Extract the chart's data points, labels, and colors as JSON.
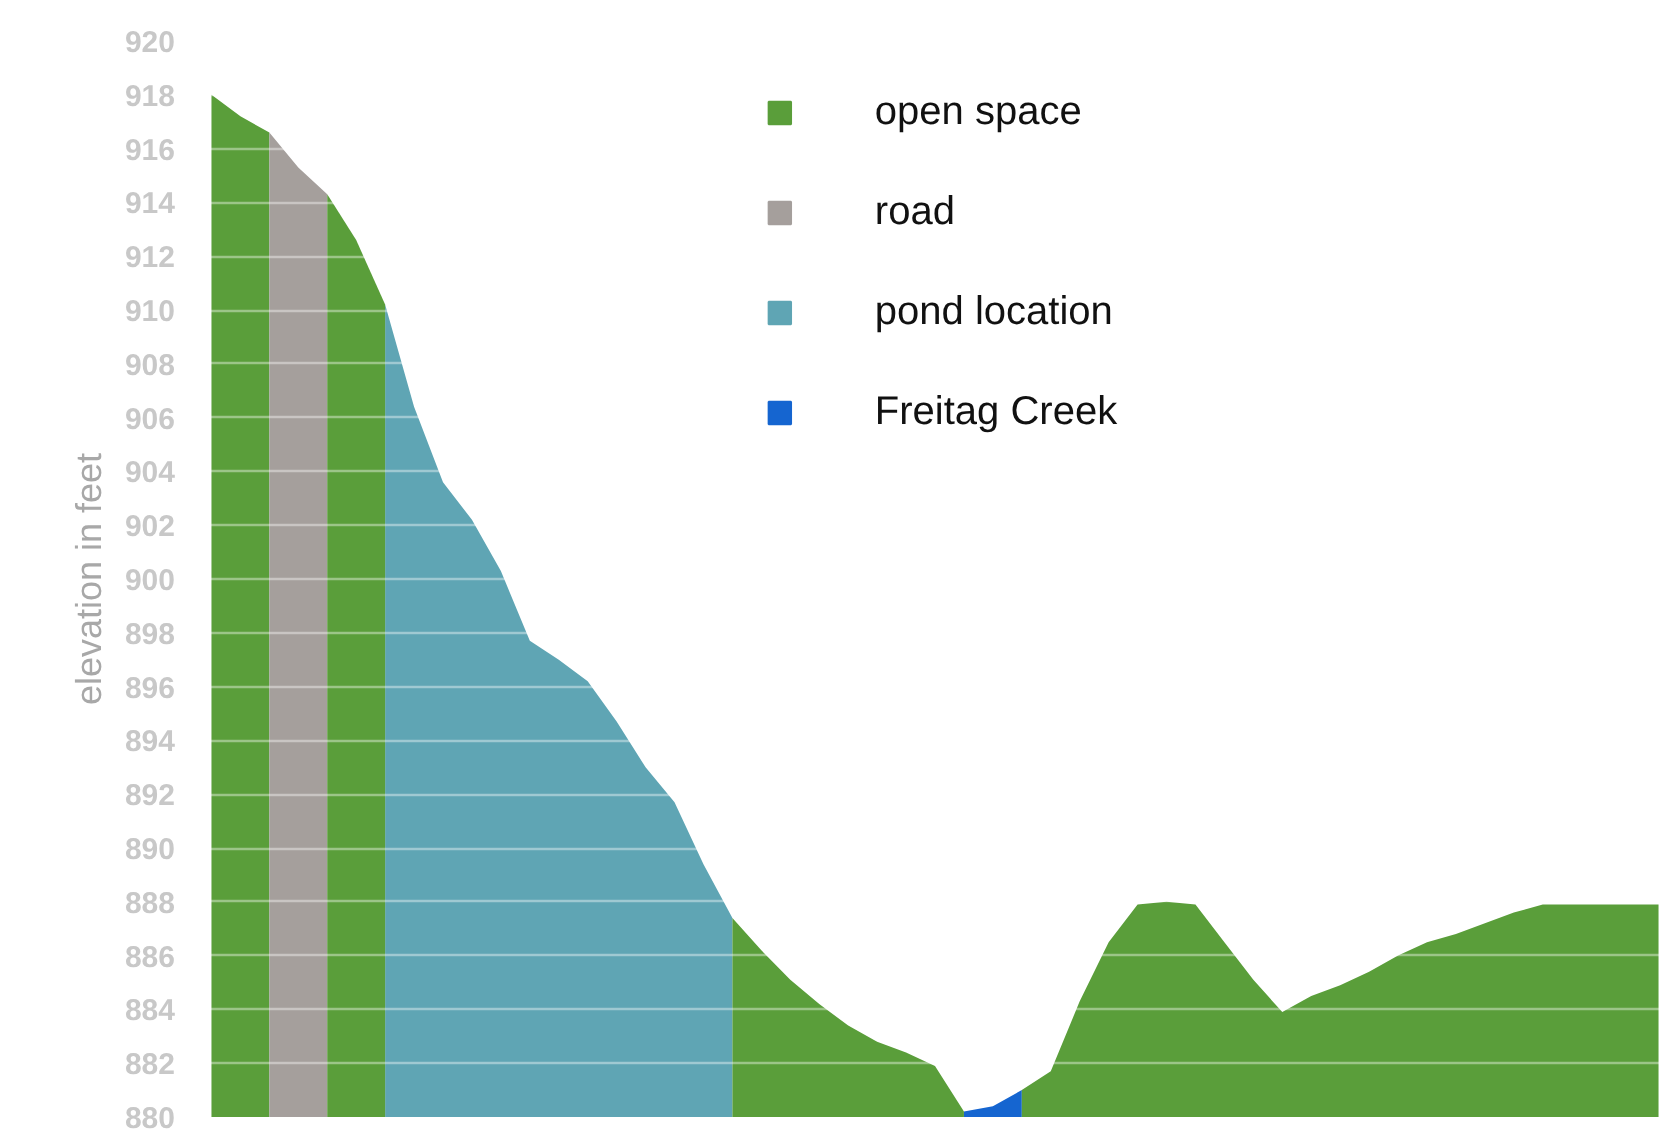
{
  "chart_data": {
    "type": "area",
    "ylabel": "elevation in feet",
    "categories": [
      null,
      null,
      null,
      null,
      null,
      null,
      null,
      null,
      null,
      null,
      null,
      null,
      null,
      null,
      null,
      null,
      null,
      null,
      null,
      null,
      null,
      null,
      null,
      null,
      null,
      null,
      null,
      null,
      null,
      null,
      null,
      null,
      null,
      null,
      null,
      null,
      null,
      null,
      null,
      null,
      null,
      null,
      null,
      null,
      null,
      null,
      null,
      null,
      null,
      null,
      null
    ],
    "series": [
      {
        "name": "open space",
        "color": "#5a9e3a",
        "values": [
          918.0,
          917.2,
          916.6,
          null,
          null,
          null,
          null,
          null,
          null,
          null,
          null,
          null,
          null,
          null,
          null,
          null,
          null,
          null,
          null,
          null,
          null,
          null,
          null,
          null,
          null,
          null,
          null,
          null,
          null,
          null,
          null,
          null,
          null,
          null,
          null,
          null,
          null,
          null,
          null,
          null,
          null,
          null,
          null,
          null,
          null,
          null,
          null,
          null,
          null,
          null,
          null
        ]
      },
      {
        "name": "road",
        "color": "#a59f9c",
        "values": [
          null,
          null,
          916.6,
          915.3,
          914.3,
          null,
          null,
          null,
          null,
          null,
          null,
          null,
          null,
          null,
          null,
          null,
          null,
          null,
          null,
          null,
          null,
          null,
          null,
          null,
          null,
          null,
          null,
          null,
          null,
          null,
          null,
          null,
          null,
          null,
          null,
          null,
          null,
          null,
          null,
          null,
          null,
          null,
          null,
          null,
          null,
          null,
          null,
          null,
          null,
          null,
          null
        ]
      },
      {
        "name": "pond location",
        "color": "#5fa5b4",
        "values": [
          null,
          null,
          null,
          null,
          null,
          null,
          910.2,
          906.4,
          903.6,
          902.2,
          900.3,
          897.7,
          897.0,
          896.2,
          894.7,
          893.0,
          891.7,
          889.4,
          887.4,
          null,
          null,
          null,
          null,
          null,
          null,
          null,
          null,
          null,
          null,
          null,
          null,
          null,
          null,
          null,
          null,
          null,
          null,
          null,
          null,
          null,
          null,
          null,
          null,
          null,
          null,
          null,
          null,
          null,
          null,
          null,
          null
        ]
      },
      {
        "name": "Freitag Creek",
        "color": "#1565d0",
        "values": [
          null,
          null,
          null,
          null,
          null,
          null,
          null,
          null,
          null,
          null,
          null,
          null,
          null,
          null,
          null,
          null,
          null,
          null,
          null,
          null,
          null,
          null,
          null,
          null,
          null,
          null,
          880.2,
          880.4,
          881.0,
          null,
          null,
          null,
          null,
          null,
          null,
          null,
          null,
          null,
          null,
          null,
          null,
          null,
          null,
          null,
          null,
          null,
          null,
          null,
          null,
          null,
          null
        ]
      },
      {
        "color": "#5a9e3a",
        "values": [
          null,
          null,
          null,
          null,
          914.3,
          912.6,
          910.2,
          null,
          null,
          null,
          null,
          null,
          null,
          null,
          null,
          null,
          null,
          null,
          null,
          null,
          null,
          null,
          null,
          null,
          null,
          null,
          null,
          null,
          null,
          null,
          null,
          null,
          null,
          null,
          null,
          null,
          null,
          null,
          null,
          null,
          null,
          null,
          null,
          null,
          null,
          null,
          null,
          null,
          null,
          null,
          null
        ]
      },
      {
        "color": "#5a9e3a",
        "values": [
          null,
          null,
          null,
          null,
          null,
          null,
          null,
          null,
          null,
          null,
          null,
          null,
          null,
          null,
          null,
          null,
          null,
          null,
          887.4,
          886.2,
          885.1,
          884.2,
          883.4,
          882.8,
          882.4,
          881.9,
          880.2,
          null,
          null,
          null,
          null,
          null,
          null,
          null,
          null,
          null,
          null,
          null,
          null,
          null,
          null,
          null,
          null,
          null,
          null,
          null,
          null,
          null,
          null,
          null,
          null
        ]
      },
      {
        "color": "#5a9e3a",
        "values": [
          null,
          null,
          null,
          null,
          null,
          null,
          null,
          null,
          null,
          null,
          null,
          null,
          null,
          null,
          null,
          null,
          null,
          null,
          null,
          null,
          null,
          null,
          null,
          null,
          null,
          null,
          null,
          null,
          881.0,
          881.7,
          884.3,
          886.5,
          887.9,
          888.0,
          887.9,
          886.5,
          885.1,
          883.9,
          884.5,
          884.9,
          885.4,
          886.0,
          886.5,
          886.8,
          887.2,
          887.6,
          887.9,
          887.9,
          887.9,
          887.9,
          887.9
        ]
      }
    ],
    "ylim": [
      880,
      920
    ],
    "yticks": [
      880,
      882,
      884,
      886,
      888,
      890,
      892,
      894,
      896,
      898,
      900,
      902,
      904,
      906,
      908,
      910,
      912,
      914,
      916,
      918,
      920
    ],
    "grid": "y",
    "legend": "top",
    "tick_labels": "y"
  }
}
